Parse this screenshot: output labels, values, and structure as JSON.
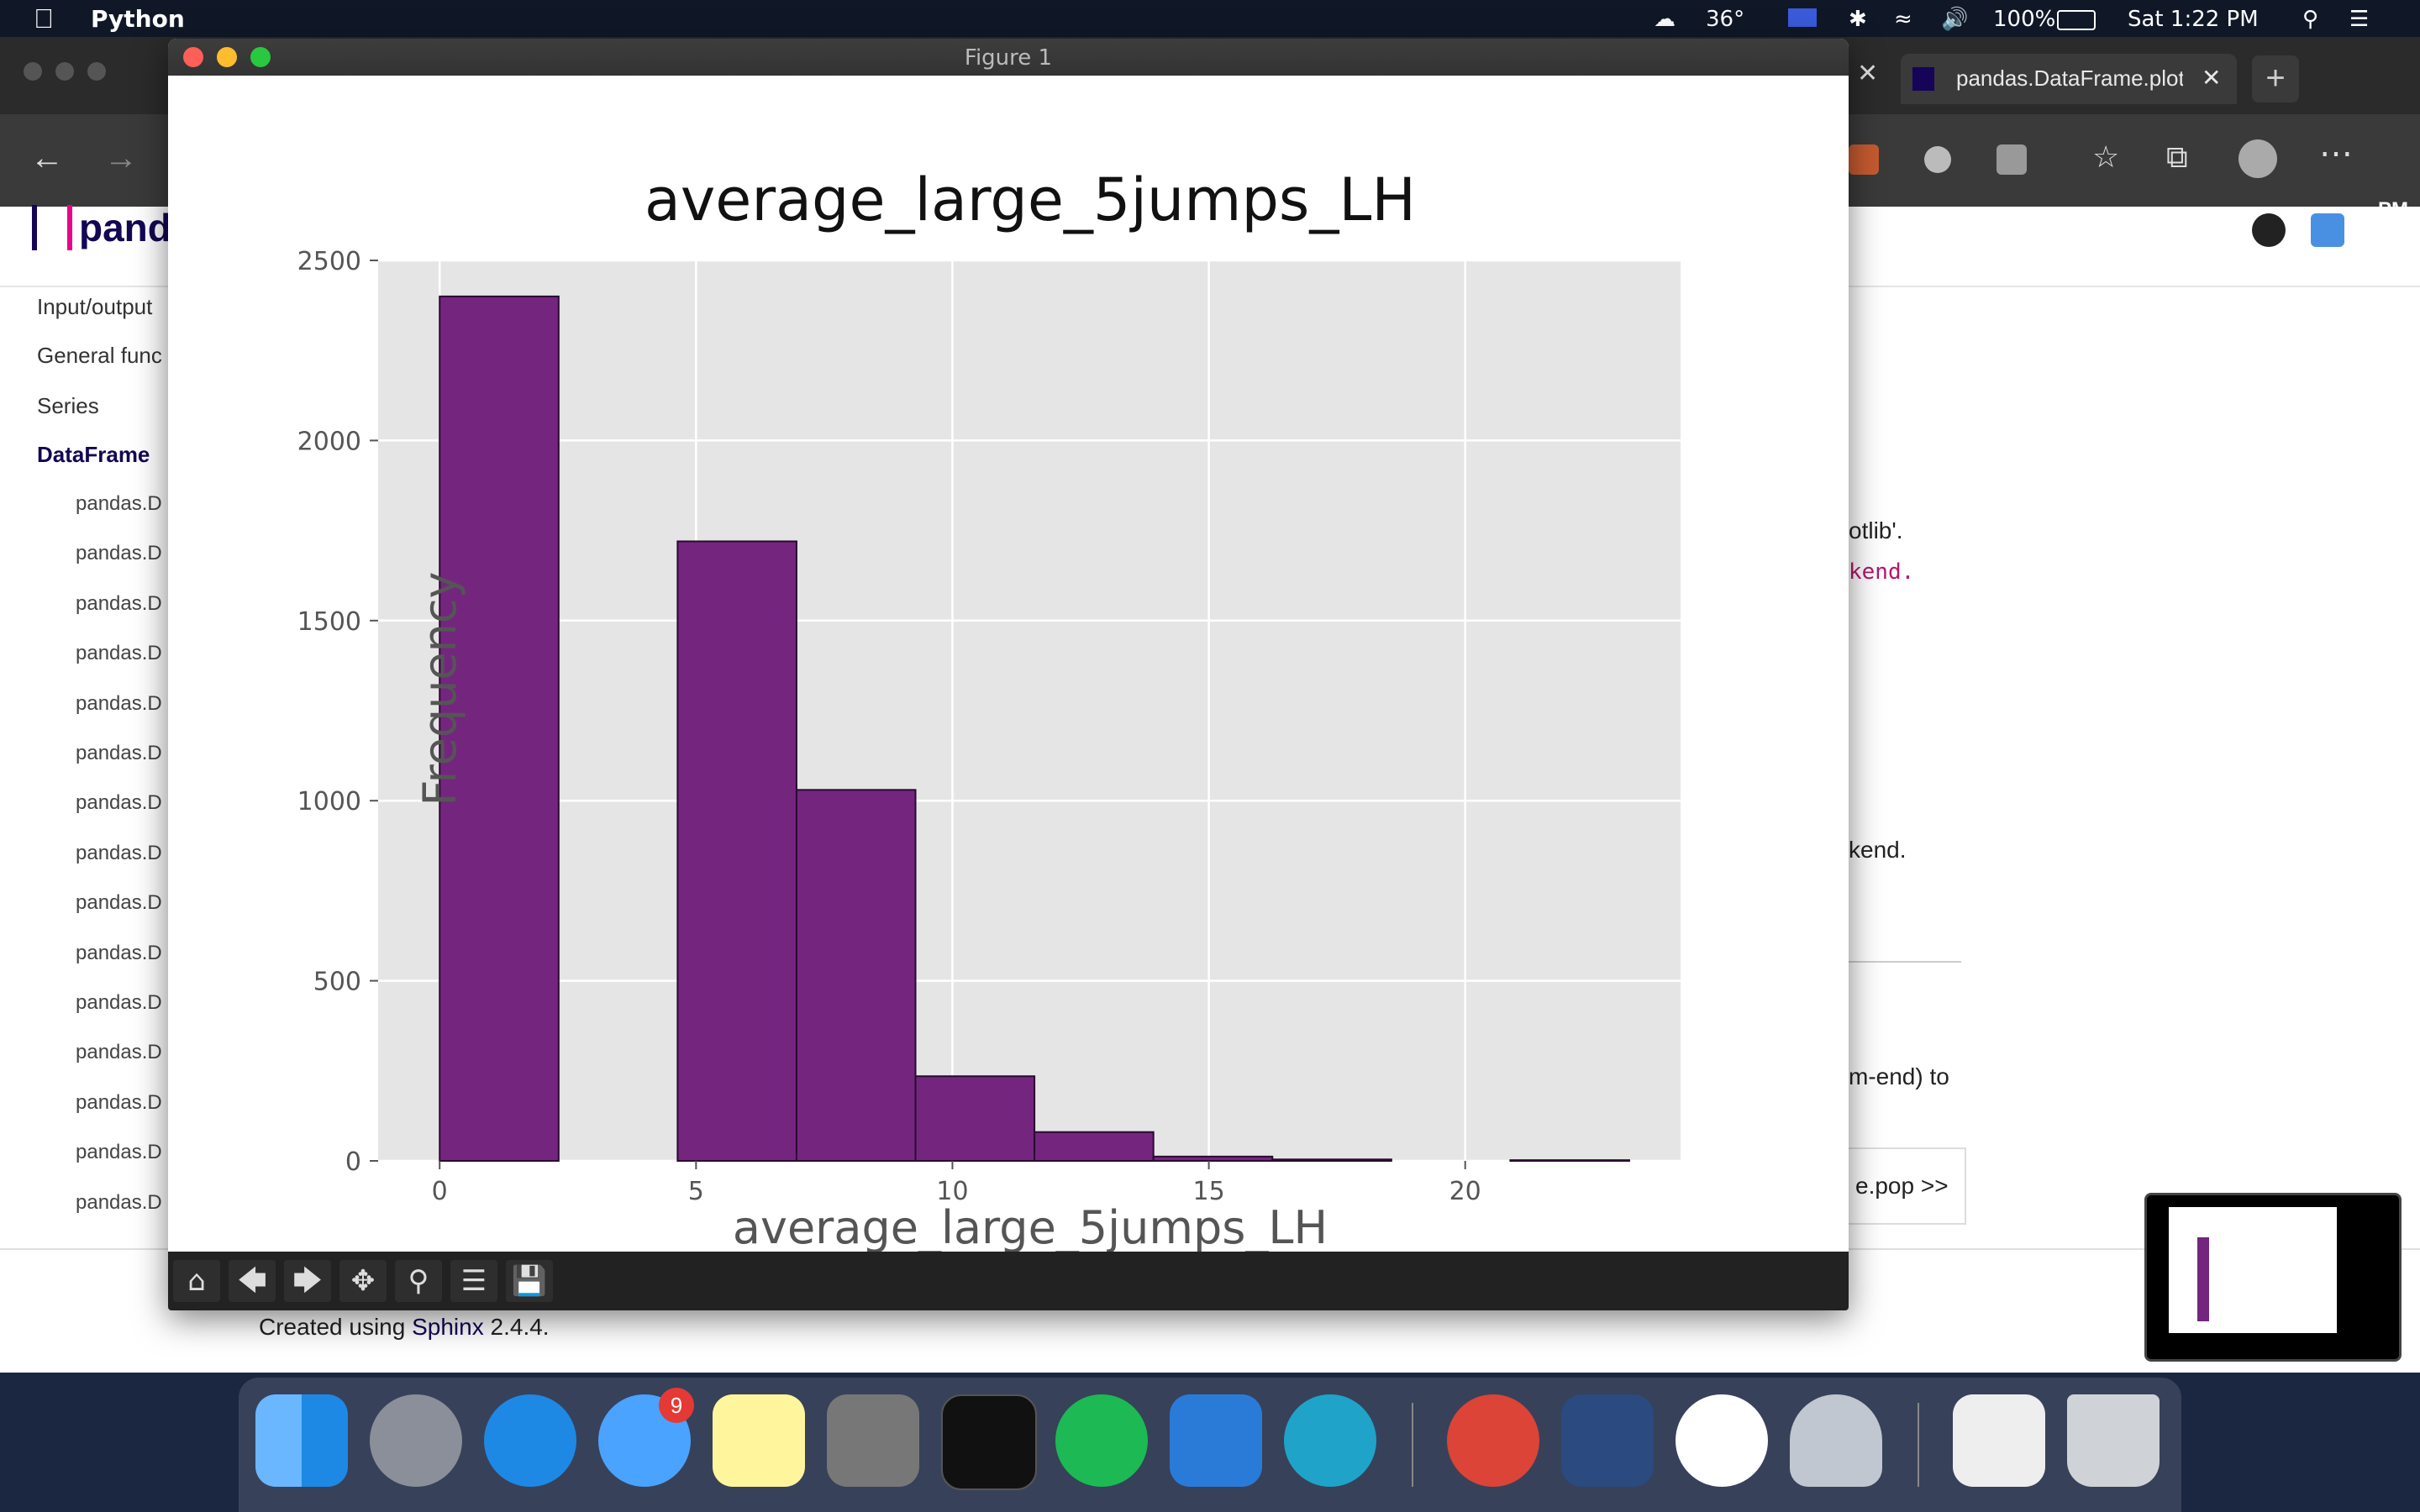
{
  "menubar": {
    "app_name": "Python",
    "temperature": "36°",
    "battery": "100%",
    "clock": "Sat 1:22 PM"
  },
  "browser": {
    "tab_active_title": "pandas.DataFrame.plot —",
    "sidebar": {
      "items": [
        "Input/output",
        "General func",
        "Series",
        "DataFrame"
      ],
      "sub_items": [
        "pandas.D",
        "pandas.D",
        "pandas.D",
        "pandas.D",
        "pandas.D",
        "pandas.D",
        "pandas.D",
        "pandas.D",
        "pandas.D",
        "pandas.D",
        "pandas.D",
        "pandas.D",
        "pandas.D",
        "pandas.D",
        "pandas.D"
      ]
    },
    "right_fragments": [
      "otlib'.",
      "kend.",
      "kend.",
      "m-end) to",
      "e.pop >>"
    ],
    "footer_prefix": "Created using ",
    "footer_link": "Sphinx",
    "footer_suffix": " 2.4.4."
  },
  "figure_window": {
    "title": "Figure 1"
  },
  "chart_data": {
    "type": "bar",
    "title": "average_large_5jumps_LH",
    "xlabel": "average_large_5jumps_LH",
    "ylabel": "Frequency",
    "xlim": [
      -1.2,
      24.2
    ],
    "ylim": [
      0,
      2500
    ],
    "xticks": [
      0,
      5,
      10,
      15,
      20
    ],
    "yticks": [
      0,
      500,
      1000,
      1500,
      2000,
      2500
    ],
    "bin_edges": [
      0,
      2.32,
      4.64,
      6.96,
      9.28,
      11.6,
      13.92,
      16.24,
      18.56,
      20.88,
      23.2
    ],
    "values": [
      2400,
      0,
      1720,
      1030,
      235,
      80,
      12,
      4,
      0,
      2
    ],
    "bar_color": "#74267f",
    "bar_edge_color": "#2a0a30",
    "background_color": "#e5e5e5",
    "grid": true
  },
  "colors": {
    "menubar": "#101828",
    "dock": "#3c465f",
    "accent_link": "#130654",
    "code_link": "#b5166b"
  }
}
